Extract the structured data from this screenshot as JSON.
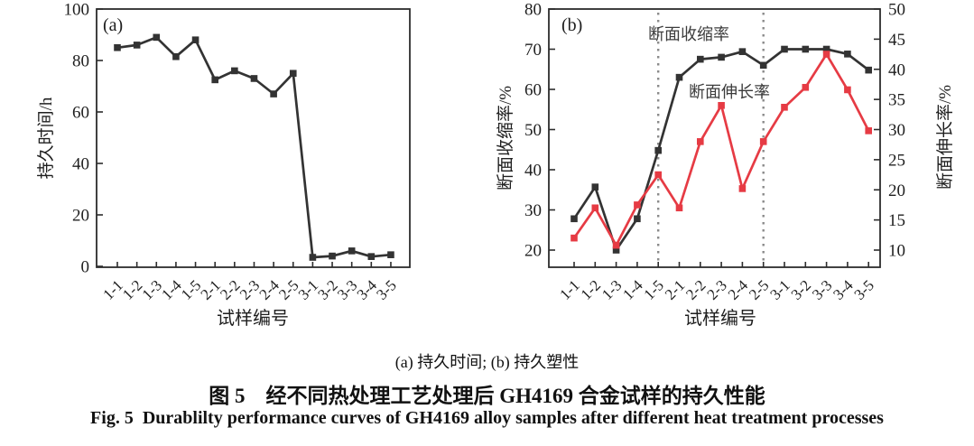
{
  "captions": {
    "sub": "(a) 持久时间; (b) 持久塑性",
    "zh": "图 5　经不同热处理工艺处理后 GH4169 合金试样的持久性能",
    "en": "Fig. 5  Durablilty performance curves of GH4169 alloy samples after different heat treatment processes"
  },
  "colors": {
    "black_series": "#333333",
    "red_series": "#e63b44",
    "axis": "#2c2c2c",
    "divider": "#8b8b8b",
    "text": "#1f1f1f",
    "annotation": "#3c3c3c"
  },
  "chart_data": [
    {
      "id": "a",
      "type": "line",
      "panel_label": "(a)",
      "xlabel": "试样编号",
      "ylabel": "持久时间/h",
      "categories": [
        "1-1",
        "1-2",
        "1-3",
        "1-4",
        "1-5",
        "2-1",
        "2-2",
        "2-3",
        "2-4",
        "2-5",
        "3-1",
        "3-2",
        "3-3",
        "3-4",
        "3-5"
      ],
      "ylim": [
        0,
        100
      ],
      "yticks": [
        0,
        20,
        40,
        60,
        80,
        100
      ],
      "grid": false,
      "legend_position": "none",
      "series": [
        {
          "name": "持久时间",
          "axis": "left",
          "color_key": "black_series",
          "marker": "square",
          "values": [
            85,
            86,
            89,
            81.5,
            88,
            72.5,
            76,
            73,
            67,
            75,
            3.5,
            4,
            6,
            3.8,
            4.5
          ]
        }
      ]
    },
    {
      "id": "b",
      "type": "line",
      "panel_label": "(b)",
      "xlabel": "试样编号",
      "ylabel_left": "断面收缩率/%",
      "ylabel_right": "断面伸长率/%",
      "categories": [
        "1-1",
        "1-2",
        "1-3",
        "1-4",
        "1-5",
        "2-1",
        "2-2",
        "2-3",
        "2-4",
        "2-5",
        "3-1",
        "3-2",
        "3-3",
        "3-4",
        "3-5"
      ],
      "ylim_left": [
        20,
        80
      ],
      "yticks_left": [
        20,
        30,
        40,
        50,
        60,
        70,
        80
      ],
      "ylim_right": [
        10,
        50
      ],
      "yticks_right": [
        10,
        15,
        20,
        25,
        30,
        35,
        40,
        45,
        50
      ],
      "grid": false,
      "legend_position": "inline-annotations",
      "vlines": [
        "1-5",
        "2-5"
      ],
      "annotations": [
        {
          "text": "断面收缩率",
          "series": "断面收缩率"
        },
        {
          "text": "断面伸长率",
          "series": "断面伸长率"
        }
      ],
      "series": [
        {
          "name": "断面收缩率",
          "axis": "left",
          "color_key": "black_series",
          "marker": "square",
          "values": [
            27.8,
            35.7,
            20,
            27.8,
            44.8,
            63,
            67.5,
            68,
            69.4,
            66,
            70,
            70,
            70,
            68.8,
            64.8
          ]
        },
        {
          "name": "断面伸长率",
          "axis": "right",
          "color_key": "red_series",
          "marker": "square",
          "values": [
            12,
            17,
            10.8,
            17.5,
            22.5,
            17,
            28,
            34,
            20.2,
            28,
            33.7,
            37,
            42.5,
            36.6,
            29.8
          ]
        }
      ]
    }
  ]
}
